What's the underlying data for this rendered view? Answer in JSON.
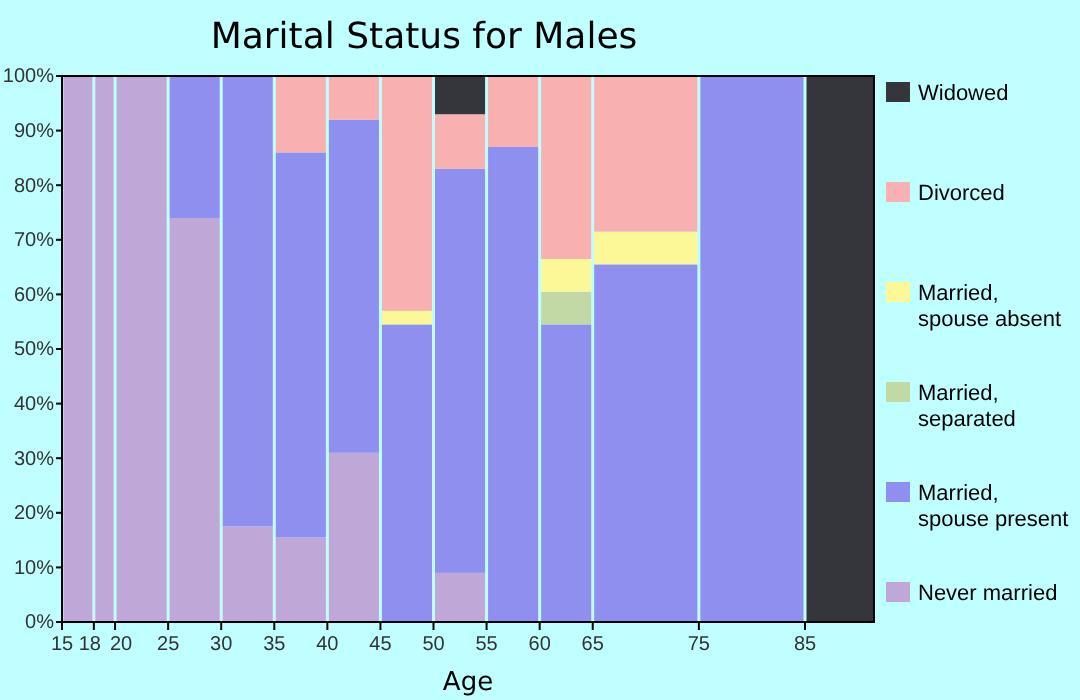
{
  "chart_data": {
    "type": "bar",
    "title": "Marital Status for Males",
    "xlabel": "Age",
    "stacked": true,
    "legend": "right",
    "grid": "x",
    "x": [
      16.5,
      19,
      22.5,
      27.5,
      32.5,
      37.5,
      42.5,
      47.5,
      52.5,
      57.5,
      62.5,
      70,
      80,
      88.25
    ],
    "series": [
      {
        "name": "Never married",
        "color": "#bfa8d8",
        "values": [
          100,
          100,
          100,
          74,
          17.5,
          15.5,
          31,
          0,
          9,
          0,
          0,
          0,
          0,
          0
        ]
      },
      {
        "name": "Married, spouse present",
        "color": "#8f8ff0",
        "values": [
          0,
          0,
          0,
          26,
          82.5,
          70.5,
          61,
          54.5,
          74,
          87,
          54.5,
          65.5,
          100,
          0
        ]
      },
      {
        "name": "Married, separated",
        "color": "#c3d9a5",
        "values": [
          0,
          0,
          0,
          0,
          0,
          0,
          0,
          0,
          0,
          0,
          6,
          0,
          0,
          0
        ]
      },
      {
        "name": "Married, spouse absent",
        "color": "#fdf897",
        "values": [
          0,
          0,
          0,
          0,
          0,
          0,
          0,
          2.5,
          0,
          0,
          6,
          6,
          0,
          0
        ]
      },
      {
        "name": "Divorced",
        "color": "#f8b0b0",
        "values": [
          0,
          0,
          0,
          0,
          0,
          14,
          8,
          43,
          10,
          13,
          33.5,
          28.5,
          0,
          0
        ]
      },
      {
        "name": "Widowed",
        "color": "#35363b",
        "values": [
          0,
          0,
          0,
          0,
          0,
          0,
          0,
          0,
          7,
          0,
          0,
          0,
          0,
          100
        ]
      }
    ],
    "xlim": [
      15,
      91.5
    ],
    "xticks": [
      15,
      18,
      20,
      25,
      30,
      35,
      40,
      45,
      50,
      55,
      60,
      65,
      75,
      85
    ],
    "ylim": [
      0,
      100
    ],
    "yticks": [
      {
        "value": 0,
        "label": "0%"
      },
      {
        "value": 10,
        "label": "10%"
      },
      {
        "value": 20,
        "label": "20%"
      },
      {
        "value": 30,
        "label": "30%"
      },
      {
        "value": 40,
        "label": "40%"
      },
      {
        "value": 50,
        "label": "50%"
      },
      {
        "value": 60,
        "label": "60%"
      },
      {
        "value": 70,
        "label": "70%"
      },
      {
        "value": 80,
        "label": "80%"
      },
      {
        "value": 90,
        "label": "90%"
      },
      {
        "value": 100,
        "label": "100%"
      }
    ]
  }
}
